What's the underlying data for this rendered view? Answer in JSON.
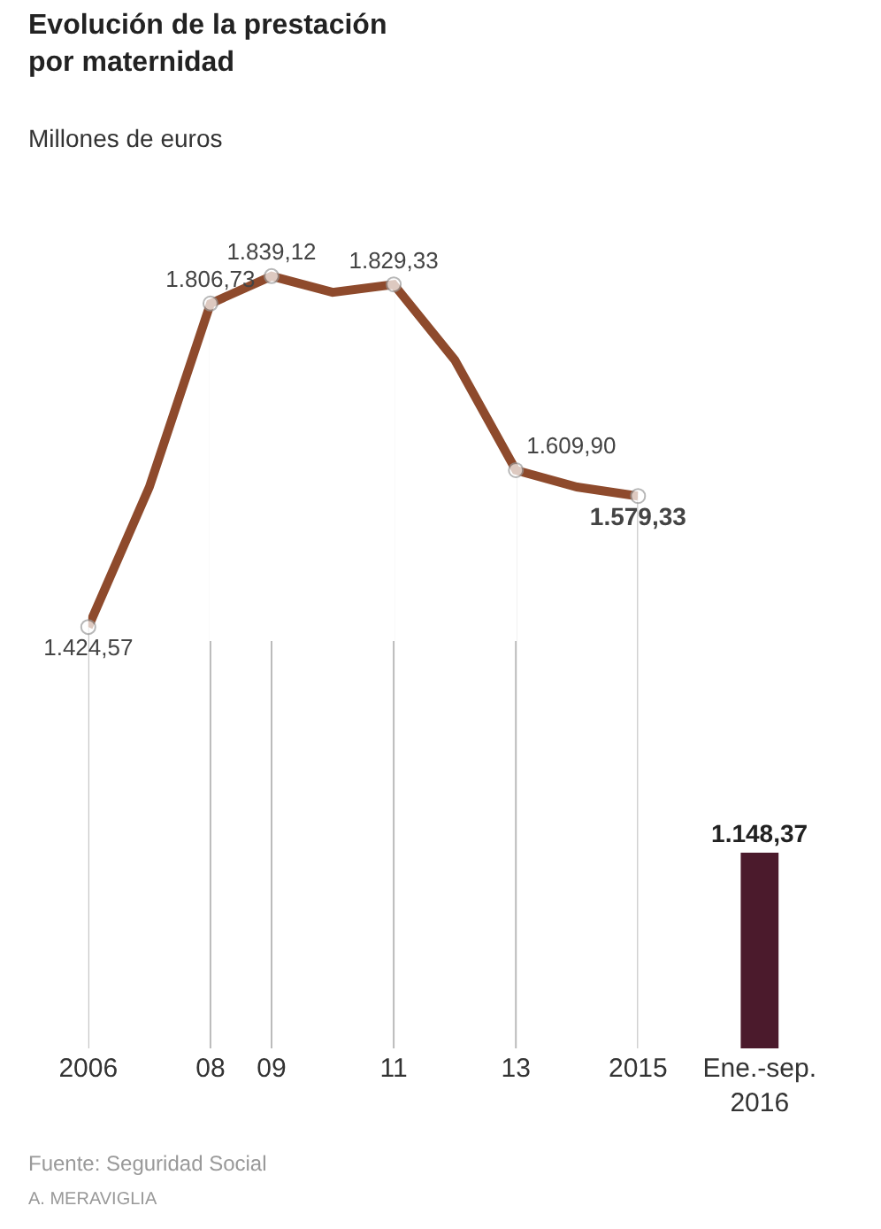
{
  "chart_data": [
    {
      "type": "line",
      "title": "Evolución de la prestación por maternidad",
      "subtitle": "Millones de euros",
      "x": [
        2006,
        2007,
        2008,
        2009,
        2010,
        2011,
        2012,
        2013,
        2014,
        2015
      ],
      "series": [
        {
          "color": "#8e4a2c",
          "values": [
            1424.57,
            1590,
            1806.73,
            1839.12,
            1820,
            1829.33,
            1740,
            1609.9,
            1590,
            1579.33
          ],
          "value_labels": [
            "1.424,57",
            null,
            "1.806,73",
            "1.839,12",
            null,
            "1.829,33",
            null,
            "1.609,90",
            null,
            "1.579,33"
          ]
        }
      ],
      "xlim": [
        2006,
        2015
      ],
      "xticks": [
        2006,
        {
          "value": 2008,
          "label": "08"
        },
        {
          "value": 2009,
          "label": "09"
        },
        {
          "value": 2011,
          "label": "11"
        },
        {
          "value": 2013,
          "label": "13"
        },
        2015
      ],
      "tick_labels": "x",
      "marker": "circle",
      "line_style": "solid",
      "grid": "x",
      "annotations": [
        "Fuente: Seguridad Social",
        "A. MERAVIGLIA"
      ]
    },
    {
      "type": "bar",
      "categories": [
        "Ene.-sep. 2016"
      ],
      "values": [
        1148.37
      ],
      "colors": [
        "#4b1a2c"
      ],
      "value_labels": [
        "1.148,37"
      ],
      "tick_labels": "x",
      "grid": false
    }
  ]
}
